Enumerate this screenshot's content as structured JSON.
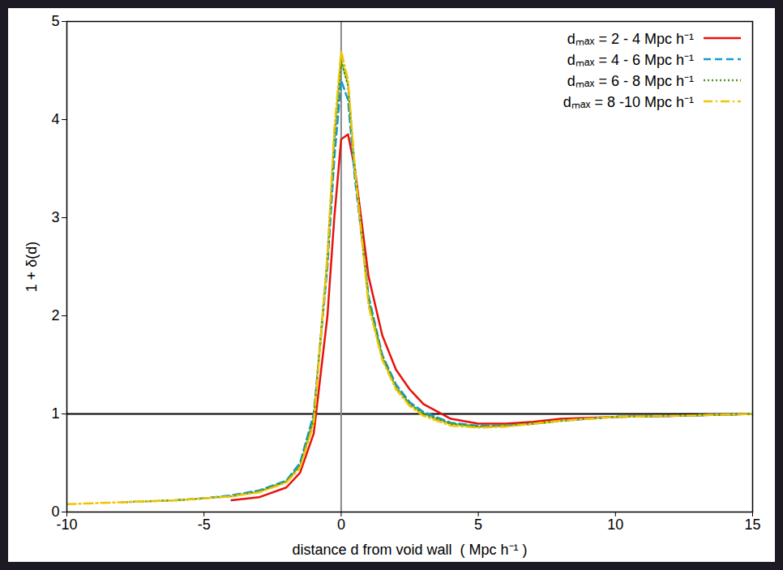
{
  "chart_data": {
    "type": "line",
    "x_label": "distance d from void wall  ( Mpc h⁻¹ )",
    "y_label": "1 + δ(d)",
    "x": [
      -10,
      -9,
      -8,
      -7,
      -6,
      -5,
      -4,
      -3,
      -2,
      -1.5,
      -1,
      -0.5,
      -0.25,
      0,
      0.25,
      0.5,
      1,
      1.5,
      2,
      2.5,
      3,
      4,
      5,
      6,
      7,
      8,
      10,
      12,
      15
    ],
    "series": [
      {
        "name": "dₘₐₓ = 2 - 4 Mpc h⁻¹",
        "color": "#e8120c",
        "line_style": "solid",
        "values": [
          null,
          null,
          null,
          null,
          null,
          null,
          0.12,
          0.15,
          0.25,
          0.4,
          0.8,
          2.0,
          3.0,
          3.8,
          3.85,
          3.5,
          2.4,
          1.8,
          1.45,
          1.25,
          1.1,
          0.95,
          0.9,
          0.9,
          0.92,
          0.95,
          0.97,
          0.98,
          1.0
        ]
      },
      {
        "name": "dₘₐₓ = 4 - 6 Mpc h⁻¹",
        "color": "#1a98d0",
        "line_style": "dashed",
        "values": [
          null,
          null,
          null,
          null,
          0.12,
          0.14,
          0.17,
          0.22,
          0.32,
          0.5,
          1.0,
          2.5,
          3.6,
          4.4,
          4.2,
          3.4,
          2.2,
          1.6,
          1.3,
          1.12,
          1.02,
          0.91,
          0.88,
          0.88,
          0.9,
          0.93,
          0.97,
          0.98,
          1.0
        ]
      },
      {
        "name": "dₘₐₓ = 6 - 8 Mpc h⁻¹",
        "color": "#4a9a1a",
        "line_style": "dotted",
        "values": [
          null,
          null,
          0.1,
          0.11,
          0.12,
          0.14,
          0.16,
          0.21,
          0.31,
          0.47,
          0.95,
          2.6,
          3.8,
          4.6,
          4.35,
          3.5,
          2.15,
          1.58,
          1.27,
          1.1,
          1.0,
          0.9,
          0.87,
          0.88,
          0.9,
          0.93,
          0.97,
          0.98,
          1.0
        ]
      },
      {
        "name": "dₘₐₓ = 8 -10 Mpc h⁻¹",
        "color": "#f2c400",
        "line_style": "dashdot",
        "values": [
          0.08,
          0.09,
          0.1,
          0.11,
          0.12,
          0.14,
          0.16,
          0.2,
          0.3,
          0.45,
          0.9,
          2.6,
          3.9,
          4.7,
          4.4,
          3.5,
          2.1,
          1.55,
          1.25,
          1.08,
          0.98,
          0.88,
          0.86,
          0.87,
          0.9,
          0.93,
          0.97,
          0.98,
          1.0
        ]
      }
    ],
    "hlines": [
      1
    ],
    "vlines": [
      0
    ],
    "xlim": [
      -10,
      15
    ],
    "xticks": [
      -10,
      -5,
      0,
      5,
      10,
      15
    ],
    "ylim": [
      0,
      5
    ],
    "yticks": [
      0,
      1,
      2,
      3,
      4,
      5
    ],
    "grid": false,
    "legend": "top-right"
  }
}
